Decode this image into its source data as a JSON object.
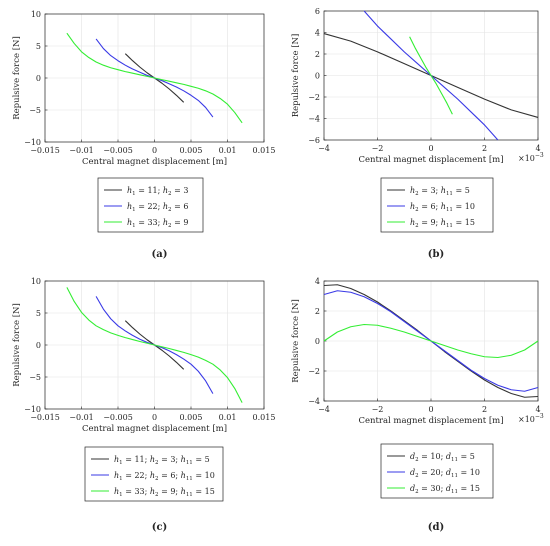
{
  "panels": [
    {
      "caption": "(a)",
      "xlabel": "Central magnet displacement [m]",
      "ylabel": "Repulsive force [N]",
      "x_scale_label": "",
      "chart_data": {
        "type": "line",
        "title": "",
        "xlabel": "Central magnet displacement [m]",
        "ylabel": "Repulsive force [N]",
        "xlim": [
          -0.015,
          0.015
        ],
        "ylim": [
          -10,
          10
        ],
        "xticks": [
          -0.015,
          -0.01,
          -0.005,
          0,
          0.005,
          0.01,
          0.015
        ],
        "xtick_labels": [
          "−0.015",
          "−0.01",
          "−0.005",
          "0",
          "0.005",
          "0.01",
          "0.015"
        ],
        "yticks": [
          -10,
          -5,
          0,
          5,
          10
        ],
        "ytick_labels": [
          "−10",
          "−5",
          "0",
          "5",
          "10"
        ],
        "grid": true,
        "legend_position": "below",
        "series": [
          {
            "name": "h1 = 11; h2 = 3",
            "legend": [
              [
                "h",
                "1",
                " = 11; "
              ],
              [
                "h",
                "2",
                " = 3"
              ]
            ],
            "color": "#333333",
            "x": [
              -0.004,
              -0.003,
              -0.002,
              -0.001,
              0,
              0.001,
              0.002,
              0.003,
              0.004
            ],
            "y": [
              3.8,
              2.7,
              1.7,
              0.8,
              0,
              -0.8,
              -1.7,
              -2.7,
              -3.8
            ]
          },
          {
            "name": "h1 = 22; h2 = 6",
            "legend": [
              [
                "h",
                "1",
                " = 22; "
              ],
              [
                "h",
                "2",
                " = 6"
              ]
            ],
            "color": "#3a3ae6",
            "x": [
              -0.008,
              -0.007,
              -0.006,
              -0.005,
              -0.004,
              -0.003,
              -0.002,
              -0.001,
              0,
              0.001,
              0.002,
              0.003,
              0.004,
              0.005,
              0.006,
              0.007,
              0.008
            ],
            "y": [
              6.1,
              4.6,
              3.5,
              2.7,
              2.0,
              1.4,
              0.9,
              0.4,
              0,
              -0.4,
              -0.9,
              -1.4,
              -2.0,
              -2.7,
              -3.5,
              -4.6,
              -6.1
            ]
          },
          {
            "name": "h1 = 33; h2 = 9",
            "legend": [
              [
                "h",
                "1",
                " = 33; "
              ],
              [
                "h",
                "2",
                " = 9"
              ]
            ],
            "color": "#33ee33",
            "x": [
              -0.012,
              -0.011,
              -0.01,
              -0.009,
              -0.008,
              -0.007,
              -0.006,
              -0.005,
              -0.004,
              -0.003,
              -0.002,
              -0.001,
              0,
              0.001,
              0.002,
              0.003,
              0.004,
              0.005,
              0.006,
              0.007,
              0.008,
              0.009,
              0.01,
              0.011,
              0.012
            ],
            "y": [
              7.0,
              5.4,
              4.1,
              3.2,
              2.5,
              2.0,
              1.6,
              1.3,
              1.0,
              0.75,
              0.5,
              0.25,
              0,
              -0.25,
              -0.5,
              -0.75,
              -1.0,
              -1.3,
              -1.6,
              -2.0,
              -2.5,
              -3.2,
              -4.1,
              -5.4,
              -7.0
            ]
          }
        ]
      }
    },
    {
      "caption": "(b)",
      "xlabel": "Central magnet displacement [m]",
      "ylabel": "Repulsive force [N]",
      "x_scale_label": "×10",
      "x_scale_exp": "−3",
      "chart_data": {
        "type": "line",
        "title": "",
        "xlabel": "Central magnet displacement [m]",
        "ylabel": "Repulsive force [N]",
        "xlim": [
          -0.004,
          0.004
        ],
        "ylim": [
          -6,
          6
        ],
        "xticks": [
          -0.004,
          -0.002,
          0,
          0.002,
          0.004
        ],
        "xtick_labels": [
          "−4",
          "−2",
          "0",
          "2",
          "4"
        ],
        "yticks": [
          -6,
          -4,
          -2,
          0,
          2,
          4,
          6
        ],
        "ytick_labels": [
          "−6",
          "−4",
          "−2",
          "0",
          "2",
          "4",
          "6"
        ],
        "grid": true,
        "legend_position": "below",
        "series": [
          {
            "name": "h2 = 3; h11 = 5",
            "legend": [
              [
                "h",
                "2",
                " = 3; "
              ],
              [
                "h",
                "11",
                " = 5"
              ]
            ],
            "color": "#333333",
            "x": [
              -0.004,
              -0.003,
              -0.002,
              -0.001,
              0,
              0.001,
              0.002,
              0.003,
              0.004
            ],
            "y": [
              3.9,
              3.2,
              2.2,
              1.1,
              0,
              -1.1,
              -2.2,
              -3.2,
              -3.9
            ]
          },
          {
            "name": "h2 = 6; h11 = 10",
            "legend": [
              [
                "h",
                "2",
                " = 6; "
              ],
              [
                "h",
                "11",
                " = 10"
              ]
            ],
            "color": "#3a3ae6",
            "x": [
              -0.0025,
              -0.002,
              -0.0015,
              -0.001,
              -0.0005,
              0,
              0.0005,
              0.001,
              0.0015,
              0.002,
              0.0025
            ],
            "y": [
              6.0,
              4.6,
              3.4,
              2.2,
              1.1,
              0,
              -1.1,
              -2.2,
              -3.4,
              -4.6,
              -6.0
            ]
          },
          {
            "name": "h2 = 9; h11 = 15",
            "legend": [
              [
                "h",
                "2",
                " = 9; "
              ],
              [
                "h",
                "11",
                " = 15"
              ]
            ],
            "color": "#33ee33",
            "x": [
              -0.0008,
              -0.0006,
              -0.0004,
              -0.0002,
              0,
              0.0002,
              0.0004,
              0.0006,
              0.0008
            ],
            "y": [
              3.6,
              2.6,
              1.7,
              0.8,
              0,
              -0.8,
              -1.7,
              -2.6,
              -3.6
            ]
          }
        ]
      }
    },
    {
      "caption": "(c)",
      "xlabel": "Central magnet displacement [m]",
      "ylabel": "Repulsive force [N]",
      "x_scale_label": "",
      "chart_data": {
        "type": "line",
        "title": "",
        "xlabel": "Central magnet displacement [m]",
        "ylabel": "Repulsive force [N]",
        "xlim": [
          -0.015,
          0.015
        ],
        "ylim": [
          -10,
          10
        ],
        "xticks": [
          -0.015,
          -0.01,
          -0.005,
          0,
          0.005,
          0.01,
          0.015
        ],
        "xtick_labels": [
          "−0.015",
          "−0.01",
          "−0.005",
          "0",
          "0.005",
          "0.01",
          "0.015"
        ],
        "yticks": [
          -10,
          -5,
          0,
          5,
          10
        ],
        "ytick_labels": [
          "−10",
          "−5",
          "0",
          "5",
          "10"
        ],
        "grid": true,
        "legend_position": "below",
        "series": [
          {
            "name": "h1 = 11; h2 = 3; h11 = 5",
            "legend": [
              [
                "h",
                "1",
                " = 11; "
              ],
              [
                "h",
                "2",
                " = 3; "
              ],
              [
                "h",
                "11",
                " = 5"
              ]
            ],
            "color": "#333333",
            "x": [
              -0.004,
              -0.003,
              -0.002,
              -0.001,
              0,
              0.001,
              0.002,
              0.003,
              0.004
            ],
            "y": [
              3.8,
              2.7,
              1.7,
              0.8,
              0,
              -0.8,
              -1.7,
              -2.7,
              -3.8
            ]
          },
          {
            "name": "h1 = 22; h2 = 6; h11 = 10",
            "legend": [
              [
                "h",
                "1",
                " = 22; "
              ],
              [
                "h",
                "2",
                " = 6; "
              ],
              [
                "h",
                "11",
                " = 10"
              ]
            ],
            "color": "#3a3ae6",
            "x": [
              -0.008,
              -0.007,
              -0.006,
              -0.005,
              -0.004,
              -0.003,
              -0.002,
              -0.001,
              0,
              0.001,
              0.002,
              0.003,
              0.004,
              0.005,
              0.006,
              0.007,
              0.008
            ],
            "y": [
              7.6,
              5.6,
              4.1,
              3.0,
              2.2,
              1.5,
              0.9,
              0.4,
              0,
              -0.4,
              -0.9,
              -1.5,
              -2.2,
              -3.0,
              -4.1,
              -5.6,
              -7.6
            ]
          },
          {
            "name": "h1 = 33; h2 = 9; h11 = 15",
            "legend": [
              [
                "h",
                "1",
                " = 33; "
              ],
              [
                "h",
                "2",
                " = 9; "
              ],
              [
                "h",
                "11",
                " = 15"
              ]
            ],
            "color": "#33ee33",
            "x": [
              -0.012,
              -0.011,
              -0.01,
              -0.009,
              -0.008,
              -0.007,
              -0.006,
              -0.005,
              -0.004,
              -0.003,
              -0.002,
              -0.001,
              0,
              0.001,
              0.002,
              0.003,
              0.004,
              0.005,
              0.006,
              0.007,
              0.008,
              0.009,
              0.01,
              0.011,
              0.012
            ],
            "y": [
              9.0,
              6.8,
              5.1,
              3.9,
              3.0,
              2.4,
              1.9,
              1.5,
              1.15,
              0.85,
              0.55,
              0.27,
              0,
              -0.27,
              -0.55,
              -0.85,
              -1.15,
              -1.5,
              -1.9,
              -2.4,
              -3.0,
              -3.9,
              -5.1,
              -6.8,
              -9.0
            ]
          }
        ]
      }
    },
    {
      "caption": "(d)",
      "xlabel": "Central magnet displacement [m]",
      "ylabel": "Repulsive force [N]",
      "x_scale_label": "×10",
      "x_scale_exp": "−3",
      "chart_data": {
        "type": "line",
        "title": "",
        "xlabel": "Central magnet displacement [m]",
        "ylabel": "Repulsive force [N]",
        "xlim": [
          -0.004,
          0.004
        ],
        "ylim": [
          -4,
          4
        ],
        "xticks": [
          -0.004,
          -0.002,
          0,
          0.002,
          0.004
        ],
        "xtick_labels": [
          "−4",
          "−2",
          "0",
          "2",
          "4"
        ],
        "yticks": [
          -4,
          -2,
          0,
          2,
          4
        ],
        "ytick_labels": [
          "−4",
          "−2",
          "0",
          "2",
          "4"
        ],
        "grid": true,
        "legend_position": "below",
        "series": [
          {
            "name": "d2 = 10; d11 = 5",
            "legend": [
              [
                "d",
                "2",
                " = 10; "
              ],
              [
                "d",
                "11",
                " = 5"
              ]
            ],
            "color": "#333333",
            "x": [
              -0.004,
              -0.0035,
              -0.003,
              -0.0025,
              -0.002,
              -0.0015,
              -0.001,
              -0.0005,
              0,
              0.0005,
              0.001,
              0.0015,
              0.002,
              0.0025,
              0.003,
              0.0035,
              0.004
            ],
            "y": [
              3.7,
              3.75,
              3.5,
              3.1,
              2.6,
              2.0,
              1.35,
              0.7,
              0,
              -0.7,
              -1.35,
              -2.0,
              -2.6,
              -3.1,
              -3.5,
              -3.75,
              -3.7
            ]
          },
          {
            "name": "d2 = 20; d11 = 10",
            "legend": [
              [
                "d",
                "2",
                " = 20; "
              ],
              [
                "d",
                "11",
                " = 10"
              ]
            ],
            "color": "#3a3ae6",
            "x": [
              -0.004,
              -0.0035,
              -0.003,
              -0.0025,
              -0.002,
              -0.0015,
              -0.001,
              -0.0005,
              0,
              0.0005,
              0.001,
              0.0015,
              0.002,
              0.0025,
              0.003,
              0.0035,
              0.004
            ],
            "y": [
              3.1,
              3.35,
              3.25,
              2.95,
              2.5,
              1.95,
              1.3,
              0.65,
              0,
              -0.65,
              -1.3,
              -1.95,
              -2.5,
              -2.95,
              -3.25,
              -3.35,
              -3.1
            ]
          },
          {
            "name": "d2 = 30; d11 = 15",
            "legend": [
              [
                "d",
                "2",
                " = 30; "
              ],
              [
                "d",
                "11",
                " = 15"
              ]
            ],
            "color": "#33ee33",
            "x": [
              -0.004,
              -0.0035,
              -0.003,
              -0.0025,
              -0.002,
              -0.0015,
              -0.001,
              -0.0005,
              0,
              0.0005,
              0.001,
              0.0015,
              0.002,
              0.0025,
              0.003,
              0.0035,
              0.004
            ],
            "y": [
              0.0,
              0.6,
              0.95,
              1.1,
              1.05,
              0.85,
              0.6,
              0.3,
              0,
              -0.3,
              -0.6,
              -0.85,
              -1.05,
              -1.1,
              -0.95,
              -0.6,
              0.0
            ]
          }
        ]
      }
    }
  ]
}
